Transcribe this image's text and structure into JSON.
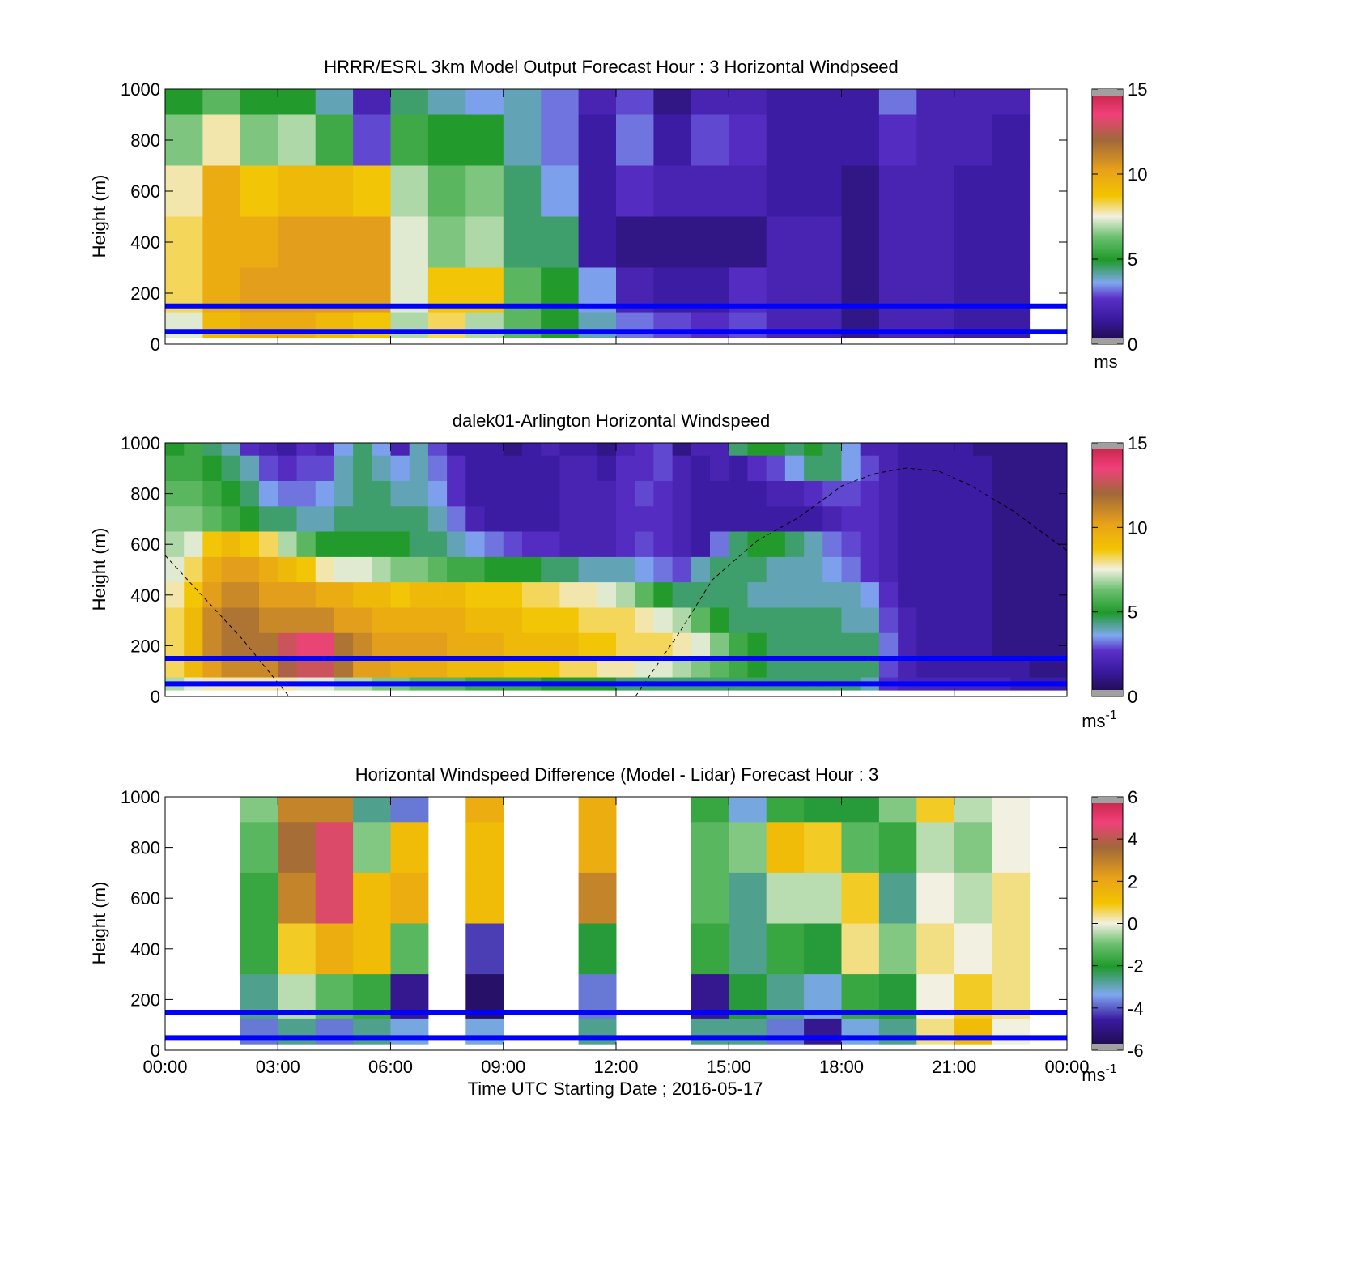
{
  "colors": {
    "reference_lines": "#0000ff",
    "nan_fill": "#a0a0a0",
    "background": "#ffffff",
    "windspeed_colormap": [
      "#1a0a40",
      "#3a1aa0",
      "#5a30c8",
      "#7fa8f0",
      "#1f9a2a",
      "#6cc070",
      "#f2f0e0",
      "#f3c400",
      "#e8a21a",
      "#a0683a",
      "#f0407a",
      "#c02040"
    ],
    "difference_colormap": [
      "#1a0a40",
      "#3a1aa0",
      "#7fa8f0",
      "#1f9a2a",
      "#6cc070",
      "#f2f0e0",
      "#f3c400",
      "#e8a21a",
      "#a0683a",
      "#f0407a",
      "#c02040"
    ]
  },
  "x_axis": {
    "tick_labels": [
      "00:00",
      "03:00",
      "06:00",
      "09:00",
      "12:00",
      "15:00",
      "18:00",
      "21:00",
      "00:00"
    ],
    "label": "Time UTC  Starting Date ; 2016-05-17"
  },
  "chart_data": [
    {
      "type": "heatmap",
      "title": "HRRR/ESRL 3km Model Output   Forecast Hour : 3 Horizontal Windpseed",
      "ylabel": "Height (m)",
      "ylim": [
        0,
        1000
      ],
      "yticks": [
        "0",
        "200",
        "400",
        "600",
        "800",
        "1000"
      ],
      "xlim": [
        0,
        24
      ],
      "x_hours": [
        0,
        1,
        2,
        3,
        4,
        5,
        6,
        7,
        8,
        9,
        10,
        11,
        12,
        13,
        14,
        15,
        16,
        17,
        18,
        19,
        20,
        21,
        22
      ],
      "heights": [
        1000,
        800,
        600,
        400,
        200,
        50
      ],
      "values": [
        [
          5.5,
          6.5,
          5.5,
          5.5,
          4.5,
          2.0,
          5.0,
          4.5,
          4.0,
          4.5,
          3.5,
          2.0,
          3.0,
          1.0,
          2.0,
          2.0,
          1.5,
          1.5,
          1.5,
          3.5,
          2.0,
          2.0,
          2.0
        ],
        [
          7.0,
          8.5,
          7.0,
          7.5,
          6.0,
          3.0,
          6.0,
          5.5,
          5.5,
          4.5,
          3.5,
          1.5,
          3.5,
          1.5,
          3.0,
          2.5,
          1.5,
          1.5,
          1.5,
          2.5,
          2.0,
          2.0,
          1.5
        ],
        [
          8.5,
          10.5,
          9.5,
          10.0,
          10.0,
          9.5,
          7.5,
          6.5,
          7.0,
          5.0,
          4.0,
          1.5,
          2.5,
          2.0,
          2.0,
          2.0,
          1.5,
          1.5,
          1.0,
          2.0,
          2.0,
          1.5,
          1.5
        ],
        [
          9.0,
          10.5,
          10.5,
          11.0,
          11.0,
          11.0,
          8.0,
          7.0,
          7.5,
          5.0,
          5.0,
          1.5,
          1.0,
          1.0,
          1.0,
          1.0,
          2.0,
          2.0,
          1.0,
          2.0,
          2.0,
          1.5,
          1.5
        ],
        [
          9.0,
          10.5,
          11.0,
          11.0,
          11.0,
          11.0,
          8.0,
          9.5,
          9.5,
          6.5,
          5.5,
          4.0,
          2.0,
          1.5,
          1.5,
          2.5,
          2.0,
          2.0,
          1.0,
          2.0,
          2.0,
          1.5,
          1.5
        ],
        [
          8.0,
          10.0,
          10.5,
          10.5,
          10.0,
          9.5,
          7.5,
          9.0,
          7.5,
          6.5,
          5.5,
          4.5,
          3.5,
          3.0,
          2.5,
          3.0,
          2.0,
          2.0,
          1.0,
          2.0,
          2.0,
          1.5,
          1.5
        ]
      ],
      "colorbar": {
        "ticks": [
          "0",
          "5",
          "10",
          "15"
        ],
        "unit": "ms"
      },
      "reference_lines_m": [
        150,
        50
      ]
    },
    {
      "type": "heatmap",
      "title": "dalek01-Arlington  Horizontal Windspeed",
      "ylabel": "Height (m)",
      "ylim": [
        0,
        1000
      ],
      "yticks": [
        "0",
        "200",
        "400",
        "600",
        "800",
        "1000"
      ],
      "xlim": [
        0,
        24
      ],
      "x_hours": [
        0,
        0.5,
        1,
        1.5,
        2,
        2.5,
        3,
        3.5,
        4,
        4.5,
        5,
        5.5,
        6,
        6.5,
        7,
        7.5,
        8,
        8.5,
        9,
        9.5,
        10,
        10.5,
        11,
        11.5,
        12,
        12.5,
        13,
        13.5,
        14,
        14.5,
        15,
        15.5,
        16,
        16.5,
        17,
        17.5,
        18,
        18.5,
        19,
        19.5,
        20,
        20.5,
        21,
        21.5,
        22,
        22.5,
        23,
        23.5
      ],
      "heights": [
        1000,
        900,
        800,
        700,
        600,
        500,
        400,
        300,
        200,
        100,
        50
      ],
      "values": [
        [
          5.5,
          6.0,
          5.0,
          4.5,
          2.5,
          2.0,
          1.5,
          2.5,
          2.0,
          4.0,
          5.0,
          4.0,
          2.0,
          4.5,
          3.0,
          1.5,
          1.5,
          1.5,
          1.0,
          1.5,
          2.0,
          1.5,
          1.5,
          1.0,
          2.0,
          2.5,
          3.0,
          1.0,
          2.0,
          2.0,
          5.0,
          5.5,
          5.5,
          5.0,
          5.5,
          5.0,
          4.0,
          2.0,
          2.0,
          1.5,
          1.5,
          1.5,
          1.5,
          1.0,
          1.0,
          1.0,
          1.0,
          1.0
        ],
        [
          6.0,
          6.0,
          5.5,
          5.0,
          4.5,
          3.0,
          2.5,
          3.0,
          3.0,
          4.5,
          5.0,
          4.5,
          4.0,
          4.5,
          3.5,
          2.5,
          1.5,
          1.5,
          1.5,
          1.5,
          1.5,
          2.0,
          2.0,
          1.5,
          2.5,
          2.5,
          3.0,
          2.0,
          1.5,
          2.0,
          1.5,
          2.5,
          3.0,
          4.0,
          5.0,
          5.0,
          4.0,
          3.0,
          2.0,
          1.5,
          1.5,
          1.5,
          1.5,
          1.5,
          1.0,
          1.0,
          1.0,
          1.0
        ],
        [
          6.5,
          6.5,
          6.0,
          5.5,
          5.0,
          4.0,
          3.5,
          3.5,
          4.0,
          4.5,
          5.0,
          5.0,
          4.5,
          4.5,
          4.0,
          2.5,
          1.5,
          1.5,
          1.5,
          1.5,
          1.5,
          2.0,
          2.0,
          2.0,
          2.5,
          3.0,
          2.5,
          2.0,
          1.5,
          1.5,
          1.5,
          1.5,
          2.0,
          2.0,
          2.5,
          3.0,
          3.0,
          2.5,
          2.0,
          1.5,
          1.5,
          1.5,
          1.5,
          1.5,
          1.0,
          1.0,
          1.0,
          1.0
        ],
        [
          7.0,
          7.0,
          6.5,
          6.0,
          5.5,
          5.0,
          5.0,
          4.5,
          4.5,
          5.0,
          5.0,
          5.0,
          5.0,
          5.0,
          4.5,
          3.5,
          2.0,
          1.5,
          1.5,
          1.5,
          1.5,
          2.0,
          2.0,
          2.0,
          2.5,
          2.5,
          2.5,
          2.0,
          1.5,
          1.5,
          1.5,
          1.5,
          1.5,
          1.5,
          1.5,
          2.0,
          2.5,
          2.5,
          2.0,
          1.5,
          1.5,
          1.5,
          1.5,
          1.5,
          1.0,
          1.0,
          1.0,
          1.0
        ],
        [
          7.5,
          8.0,
          9.5,
          10.0,
          9.5,
          9.0,
          7.5,
          6.5,
          5.5,
          5.5,
          5.5,
          5.5,
          5.5,
          5.0,
          5.0,
          4.5,
          4.0,
          3.5,
          3.0,
          2.5,
          2.5,
          2.0,
          2.0,
          2.0,
          2.5,
          3.0,
          2.5,
          2.0,
          1.5,
          3.5,
          5.0,
          5.5,
          5.5,
          5.0,
          4.5,
          3.5,
          3.0,
          2.5,
          2.0,
          1.5,
          1.5,
          1.5,
          1.5,
          1.5,
          1.0,
          1.0,
          1.0,
          1.0
        ],
        [
          8.0,
          9.0,
          10.5,
          11.0,
          11.0,
          10.5,
          10.0,
          9.5,
          8.5,
          8.0,
          8.0,
          7.5,
          7.0,
          7.0,
          6.5,
          6.0,
          6.0,
          5.5,
          5.5,
          5.5,
          5.0,
          5.0,
          4.5,
          4.5,
          4.5,
          4.0,
          3.5,
          3.0,
          4.5,
          5.0,
          5.0,
          5.0,
          4.5,
          4.5,
          4.5,
          4.0,
          3.5,
          2.5,
          2.0,
          1.5,
          1.5,
          1.5,
          1.5,
          1.5,
          1.0,
          1.0,
          1.0,
          1.0
        ],
        [
          8.5,
          9.5,
          11.0,
          11.5,
          11.5,
          11.0,
          11.0,
          11.0,
          10.5,
          10.5,
          10.0,
          10.0,
          9.5,
          10.0,
          10.0,
          10.0,
          9.5,
          9.5,
          9.5,
          9.0,
          9.0,
          8.5,
          8.5,
          8.0,
          7.5,
          6.5,
          5.5,
          5.0,
          5.0,
          5.0,
          5.0,
          4.5,
          4.5,
          4.5,
          4.5,
          4.5,
          4.5,
          4.0,
          2.5,
          1.5,
          1.5,
          1.5,
          1.5,
          1.5,
          1.0,
          1.0,
          1.0,
          1.0
        ],
        [
          9.0,
          10.0,
          11.5,
          12.0,
          12.0,
          11.5,
          11.5,
          11.5,
          11.5,
          11.0,
          11.0,
          10.5,
          10.5,
          10.5,
          10.5,
          10.5,
          10.0,
          10.0,
          10.0,
          9.5,
          9.5,
          9.5,
          9.0,
          9.0,
          9.0,
          8.5,
          8.0,
          7.5,
          6.5,
          5.5,
          5.0,
          5.0,
          5.0,
          5.0,
          5.0,
          5.0,
          4.5,
          4.5,
          3.0,
          2.0,
          1.5,
          1.5,
          1.5,
          1.5,
          1.0,
          1.0,
          1.0,
          1.0
        ],
        [
          9.0,
          10.0,
          11.5,
          12.0,
          12.0,
          12.0,
          13.0,
          13.5,
          13.5,
          12.0,
          11.5,
          11.0,
          11.0,
          11.0,
          11.0,
          10.5,
          10.5,
          10.5,
          10.0,
          10.0,
          10.0,
          10.0,
          9.5,
          9.5,
          9.0,
          9.0,
          9.0,
          8.5,
          8.0,
          7.0,
          6.0,
          5.5,
          5.0,
          5.0,
          5.0,
          5.0,
          5.0,
          5.0,
          3.5,
          2.0,
          1.5,
          1.5,
          1.5,
          1.5,
          1.0,
          1.0,
          1.0,
          1.0
        ],
        [
          9.0,
          10.0,
          11.0,
          11.5,
          11.5,
          11.5,
          12.5,
          13.0,
          13.0,
          12.0,
          11.0,
          11.0,
          10.5,
          10.5,
          10.5,
          10.0,
          10.0,
          10.0,
          9.5,
          9.5,
          9.5,
          9.0,
          9.0,
          8.5,
          8.5,
          8.0,
          8.0,
          7.5,
          7.0,
          6.5,
          6.0,
          5.5,
          5.0,
          5.0,
          5.0,
          5.0,
          5.0,
          5.0,
          3.0,
          2.0,
          1.5,
          1.5,
          1.5,
          1.5,
          1.5,
          1.5,
          1.0,
          1.0
        ],
        [
          7.5,
          8.0,
          8.5,
          8.5,
          8.5,
          8.5,
          8.5,
          8.0,
          8.0,
          7.5,
          7.5,
          7.0,
          7.0,
          6.5,
          6.5,
          6.5,
          6.0,
          6.0,
          6.0,
          6.0,
          5.5,
          5.5,
          5.5,
          5.5,
          5.0,
          5.0,
          5.0,
          5.0,
          5.0,
          5.0,
          5.0,
          5.0,
          5.0,
          5.0,
          5.0,
          5.0,
          5.0,
          4.5,
          2.5,
          2.0,
          2.0,
          2.0,
          2.0,
          2.0,
          2.0,
          1.5,
          1.5,
          1.5
        ]
      ],
      "colorbar": {
        "ticks": [
          "0",
          "5",
          "10",
          "15"
        ],
        "unit": "ms",
        "unit_exponent": "-1"
      },
      "reference_lines_m": [
        150,
        50
      ]
    },
    {
      "type": "heatmap",
      "title": "Horizontal Windspeed Difference (Model - Lidar) Forecast Hour : 3",
      "ylabel": "Height (m)",
      "ylim": [
        0,
        1000
      ],
      "yticks": [
        "0",
        "200",
        "400",
        "600",
        "800",
        "1000"
      ],
      "xlim": [
        0,
        24
      ],
      "x_hours": [
        2,
        3,
        4,
        5,
        6,
        8,
        11,
        14,
        15,
        16,
        17,
        18,
        19,
        20,
        21,
        22
      ],
      "heights": [
        1000,
        800,
        600,
        400,
        200,
        50
      ],
      "values": [
        [
          -1.0,
          3.0,
          3.0,
          -3.0,
          -4.0,
          2.0,
          2.0,
          -2.0,
          -3.5,
          -2.0,
          -2.5,
          -2.5,
          -1.0,
          1.0,
          -0.5,
          0.0
        ],
        [
          -1.5,
          3.5,
          4.5,
          -1.0,
          1.5,
          1.5,
          2.0,
          -1.5,
          -1.0,
          1.5,
          1.0,
          -1.5,
          -2.0,
          -0.5,
          -1.0,
          0.0
        ],
        [
          -2.0,
          3.0,
          4.5,
          1.5,
          2.0,
          1.5,
          3.0,
          -1.5,
          -3.0,
          -0.5,
          -0.5,
          1.0,
          -3.0,
          0.0,
          -0.5,
          0.5
        ],
        [
          -2.0,
          1.0,
          2.0,
          1.5,
          -1.5,
          -4.5,
          -2.5,
          -2.0,
          -3.0,
          -2.0,
          -2.5,
          0.5,
          -1.0,
          0.5,
          0.0,
          0.5
        ],
        [
          -3.0,
          -0.5,
          -1.5,
          -2.0,
          -5.0,
          -5.5,
          -4.0,
          -5.0,
          -2.5,
          -3.0,
          -3.5,
          -2.0,
          -2.5,
          0.0,
          1.0,
          0.5
        ],
        [
          -4.0,
          -3.0,
          -4.0,
          -3.0,
          -3.5,
          -3.5,
          -3.0,
          -3.0,
          -3.0,
          -4.0,
          -5.0,
          -3.5,
          -3.0,
          0.5,
          1.5,
          0.0
        ]
      ],
      "colorbar": {
        "ticks": [
          "-6",
          "-4",
          "-2",
          "0",
          "2",
          "4",
          "6"
        ],
        "unit": "ms",
        "unit_exponent": "-1"
      },
      "reference_lines_m": [
        150,
        50
      ]
    }
  ]
}
